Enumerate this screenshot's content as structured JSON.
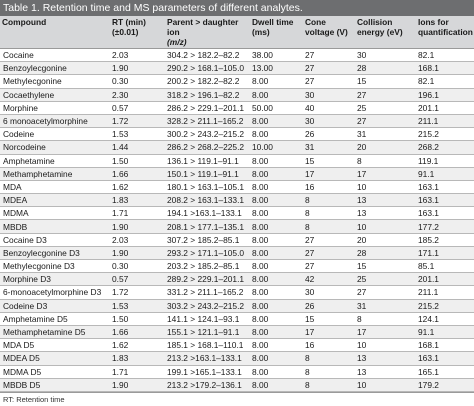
{
  "caption": "Table 1. Retention time and MS parameters of different analytes.",
  "headers": [
    [
      "Compound"
    ],
    [
      "RT (min)",
      "(±0.01)"
    ],
    [
      "Parent > daughter ion",
      "(m/z)"
    ],
    [
      "Dwell time",
      "(ms)"
    ],
    [
      "Cone",
      "voltage (V)"
    ],
    [
      "Collision",
      "energy (eV)"
    ],
    [
      "Ions for",
      "quantification"
    ]
  ],
  "rows": [
    [
      "Cocaine",
      "2.03",
      "304.2 > 182.2–82.2",
      "38.00",
      "27",
      "30",
      "82.1"
    ],
    [
      "Benzoylecgonine",
      "1.90",
      "290.2 > 168.1–105.0",
      "13.00",
      "27",
      "28",
      "168.1"
    ],
    [
      "Methylecgonine",
      "0.30",
      "200.2 > 182.2–82.2",
      "8.00",
      "27",
      "15",
      "82.1"
    ],
    [
      "Cocaethylene",
      "2.30",
      "318.2 > 196.1–82.2",
      "8.00",
      "30",
      "27",
      "196.1"
    ],
    [
      "Morphine",
      "0.57",
      "286.2 > 229.1–201.1",
      "50.00",
      "40",
      "25",
      "201.1"
    ],
    [
      "6 monoacetylmorphine",
      "1.72",
      "328.2 > 211.1–165.2",
      "8.00",
      "30",
      "27",
      "211.1"
    ],
    [
      "Codeine",
      "1.53",
      "300.2 > 243.2–215.2",
      "8.00",
      "26",
      "31",
      "215.2"
    ],
    [
      "Norcodeine",
      "1.44",
      "286.2 > 268.2–225.2",
      "10.00",
      "31",
      "20",
      "268.2"
    ],
    [
      "Amphetamine",
      "1.50",
      "136.1 > 119.1–91.1",
      "8.00",
      "15",
      "8",
      "119.1"
    ],
    [
      "Methamphetamine",
      "1.66",
      "150.1 > 119.1–91.1",
      "8.00",
      "17",
      "17",
      "91.1"
    ],
    [
      "MDA",
      "1.62",
      "180.1 > 163.1–105.1",
      "8.00",
      "16",
      "10",
      "163.1"
    ],
    [
      "MDEA",
      "1.83",
      "208.2 > 163.1–133.1",
      "8.00",
      "8",
      "13",
      "163.1"
    ],
    [
      "MDMA",
      "1.71",
      "194.1 >163.1–133.1",
      "8.00",
      "8",
      "13",
      "163.1"
    ],
    [
      "MBDB",
      "1.90",
      "208.1 > 177.1–135.1",
      "8.00",
      "8",
      "10",
      "177.2"
    ],
    [
      "Cocaine D3",
      "2.03",
      "307.2 > 185.2–85.1",
      "8.00",
      "27",
      "20",
      "185.2"
    ],
    [
      "Benzoylecgonine D3",
      "1.90",
      "293.2 > 171.1–105.0",
      "8.00",
      "27",
      "28",
      "171.1"
    ],
    [
      "Methylecgonine D3",
      "0.30",
      "203.2 > 185.2–85.1",
      "8.00",
      "27",
      "15",
      "85.1"
    ],
    [
      "Morphine D3",
      "0.57",
      "289.2 > 229.1–201.1",
      "8.00",
      "42",
      "25",
      "201.1"
    ],
    [
      "6-monoacetylmorphine D3",
      "1.72",
      "331.2 > 211.1–165.2",
      "8.00",
      "30",
      "27",
      "211.1"
    ],
    [
      "Codeine D3",
      "1.53",
      "303.2 > 243.2–215.2",
      "8.00",
      "26",
      "31",
      "215.2"
    ],
    [
      "Amphetamine D5",
      "1.50",
      "141.1 > 124.1–93.1",
      "8.00",
      "15",
      "8",
      "124.1"
    ],
    [
      "Methamphetamine D5",
      "1.66",
      "155.1 > 121.1–91.1",
      "8.00",
      "17",
      "17",
      "91.1"
    ],
    [
      "MDA D5",
      "1.62",
      "185.1 > 168.1–110.1",
      "8.00",
      "16",
      "10",
      "168.1"
    ],
    [
      "MDEA D5",
      "1.83",
      "213.2 >163.1–133.1",
      "8.00",
      "8",
      "13",
      "163.1"
    ],
    [
      "MDMA D5",
      "1.71",
      "199.1 >165.1–133.1",
      "8.00",
      "8",
      "13",
      "165.1"
    ],
    [
      "MBDB D5",
      "1.90",
      "213.2 >179.2–136.1",
      "8.00",
      "8",
      "10",
      "179.2"
    ]
  ],
  "footnote": "RT: Retention time"
}
